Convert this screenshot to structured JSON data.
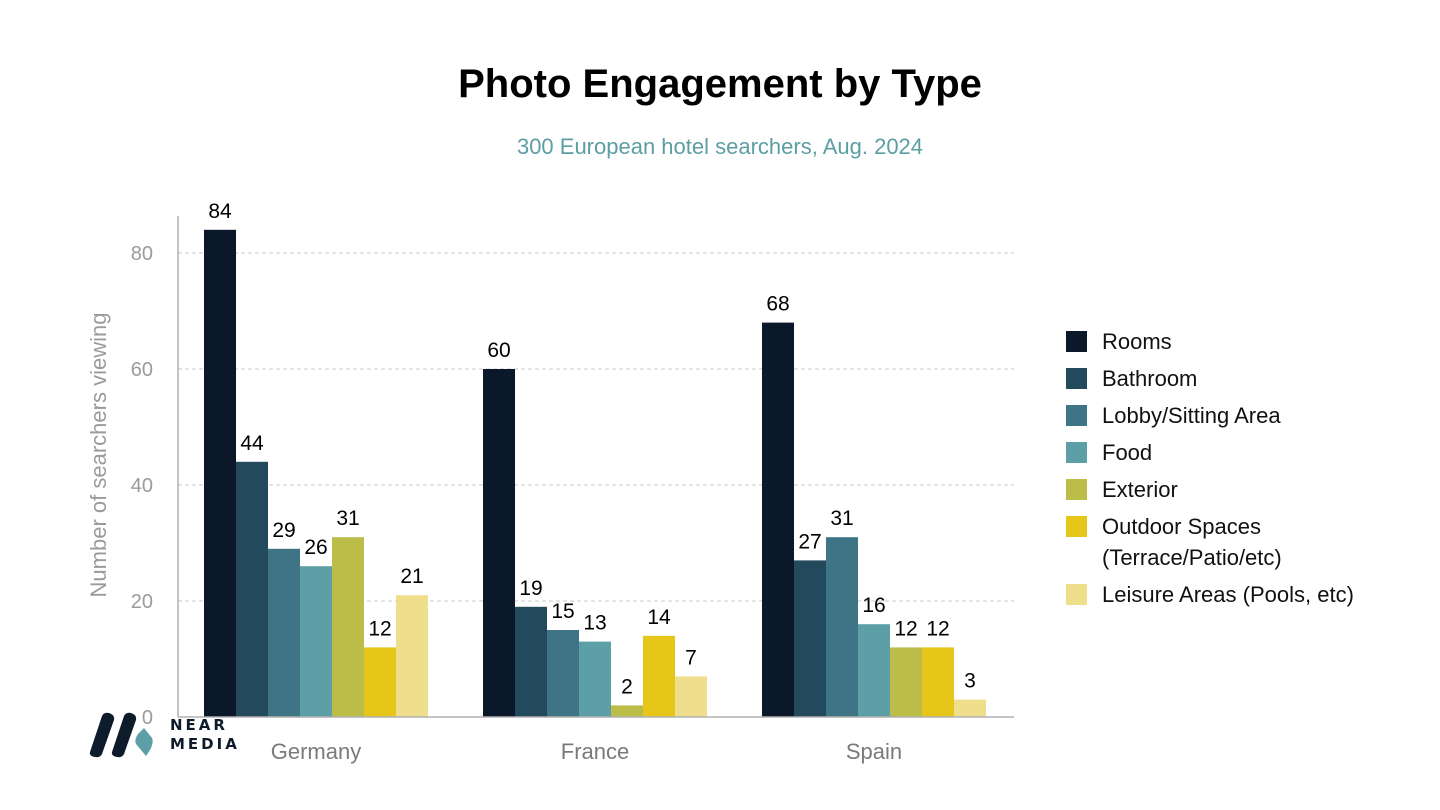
{
  "chart_data": {
    "type": "bar",
    "title": "Photo Engagement by Type",
    "subtitle": "300 European hotel searchers, Aug. 2024",
    "xlabel": "",
    "ylabel": "Number of searchers viewing",
    "ylim": [
      0,
      85
    ],
    "yticks": [
      0,
      20,
      40,
      60,
      80
    ],
    "grid": true,
    "legend_position": "right",
    "categories": [
      "Germany",
      "France",
      "Spain"
    ],
    "series": [
      {
        "name": "Rooms",
        "color": "#0b1829",
        "values": [
          84,
          60,
          68
        ]
      },
      {
        "name": "Bathroom",
        "color": "#234a5c",
        "values": [
          44,
          19,
          27
        ]
      },
      {
        "name": "Lobby/Sitting Area",
        "color": "#3e7485",
        "values": [
          29,
          15,
          31
        ]
      },
      {
        "name": "Food",
        "color": "#5d9fa7",
        "values": [
          26,
          13,
          16
        ]
      },
      {
        "name": "Exterior",
        "color": "#bcbd48",
        "values": [
          31,
          2,
          12
        ]
      },
      {
        "name": "Outdoor Spaces (Terrace/Patio/etc)",
        "color": "#e6c619",
        "values": [
          12,
          14,
          12
        ]
      },
      {
        "name": "Leisure Areas (Pools, etc)",
        "color": "#efdf8c",
        "values": [
          21,
          7,
          3
        ]
      }
    ]
  },
  "logo": {
    "line1": "NEAR",
    "line2": "MEDIA",
    "dark_color": "#0d1b2a",
    "accent_color": "#5d9fa7"
  }
}
